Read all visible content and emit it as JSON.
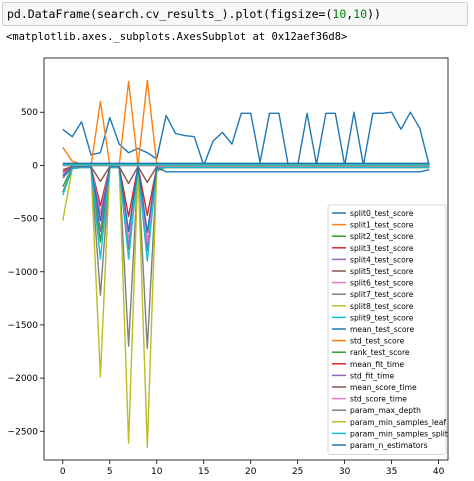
{
  "notebook": {
    "code_prefix": "pd.DataFrame(search.cv_results_).plot(figsize=(",
    "code_num1": "10",
    "code_comma": ",",
    "code_num2": "10",
    "code_suffix": "))",
    "output_text": "<matplotlib.axes._subplots.AxesSubplot at 0x12aef36d8>"
  },
  "chart_data": {
    "type": "line",
    "title": "",
    "xlabel": "",
    "ylabel": "",
    "xlim": [
      -2,
      41
    ],
    "ylim": [
      -2770,
      1010
    ],
    "xticks": [
      0,
      5,
      10,
      15,
      20,
      25,
      30,
      35,
      40
    ],
    "yticks": [
      -2500,
      -2000,
      -1500,
      -1000,
      -500,
      0,
      500
    ],
    "grid": false,
    "legend_position": "lower-right",
    "series": [
      {
        "name": "split0_test_score",
        "color": "#1f77b4",
        "values": [
          340,
          270,
          410,
          100,
          120,
          450,
          200,
          120,
          160,
          120,
          60,
          470,
          300,
          280,
          270,
          0,
          230,
          310,
          200,
          490,
          490,
          30,
          490,
          490,
          0,
          0,
          490,
          10,
          490,
          490,
          0,
          500,
          0,
          490,
          490,
          500,
          340,
          500,
          350,
          0
        ]
      },
      {
        "name": "split1_test_score",
        "color": "#ff7f0e",
        "values": [
          170,
          40,
          10,
          0,
          600,
          0,
          0,
          790,
          0,
          800,
          20,
          10,
          10,
          10,
          10,
          10,
          10,
          10,
          10,
          10,
          10,
          10,
          10,
          10,
          10,
          10,
          10,
          10,
          10,
          10,
          10,
          10,
          10,
          10,
          10,
          10,
          10,
          10,
          10,
          10
        ]
      },
      {
        "name": "split2_test_score",
        "color": "#2ca02c",
        "values": [
          -200,
          -20,
          -10,
          -10,
          -720,
          -10,
          -10,
          -790,
          -10,
          -800,
          -30,
          -10,
          -10,
          -10,
          -10,
          -10,
          -10,
          -10,
          -10,
          -10,
          -10,
          -10,
          -10,
          -10,
          -10,
          -10,
          -10,
          -10,
          -10,
          -10,
          -10,
          -10,
          -10,
          -10,
          -10,
          -10,
          -10,
          -10,
          -10,
          -10
        ]
      },
      {
        "name": "split3_test_score",
        "color": "#d62728",
        "values": [
          -60,
          -10,
          -10,
          -10,
          -380,
          -10,
          -10,
          -480,
          -10,
          -470,
          -20,
          -10,
          -10,
          -10,
          -10,
          -10,
          -10,
          -10,
          -10,
          -10,
          -10,
          -10,
          -10,
          -10,
          -10,
          -10,
          -10,
          -10,
          -10,
          -10,
          -10,
          -10,
          -10,
          -10,
          -10,
          -10,
          -10,
          -10,
          -10,
          -10
        ]
      },
      {
        "name": "split4_test_score",
        "color": "#9467bd",
        "values": [
          -120,
          -20,
          -10,
          -10,
          -620,
          -10,
          -10,
          -760,
          -10,
          -780,
          -20,
          -10,
          -10,
          -10,
          -10,
          -10,
          -10,
          -10,
          -10,
          -10,
          -10,
          -10,
          -10,
          -10,
          -10,
          -10,
          -10,
          -10,
          -10,
          -10,
          -10,
          -10,
          -10,
          -10,
          -10,
          -10,
          -10,
          -10,
          -10,
          -10
        ]
      },
      {
        "name": "split5_test_score",
        "color": "#8c564b",
        "values": [
          -40,
          -10,
          -10,
          -10,
          -150,
          -10,
          -10,
          -170,
          -10,
          -160,
          -10,
          -10,
          -10,
          -10,
          -10,
          -10,
          -10,
          -10,
          -10,
          -10,
          -10,
          -10,
          -10,
          -10,
          -10,
          -10,
          -10,
          -10,
          -10,
          -10,
          -10,
          -10,
          -10,
          -10,
          -10,
          -10,
          -10,
          -10,
          -10,
          -10
        ]
      },
      {
        "name": "split6_test_score",
        "color": "#e377c2",
        "values": [
          -80,
          -10,
          -10,
          -10,
          -450,
          -10,
          -10,
          -700,
          -10,
          -720,
          -20,
          -10,
          -10,
          -10,
          -10,
          -10,
          -10,
          -10,
          -10,
          -10,
          -10,
          -10,
          -10,
          -10,
          -10,
          -10,
          -10,
          -10,
          -10,
          -10,
          -10,
          -10,
          -10,
          -10,
          -10,
          -10,
          -10,
          -10,
          -10,
          -10
        ]
      },
      {
        "name": "split7_test_score",
        "color": "#7f7f7f",
        "values": [
          -250,
          -30,
          -20,
          -20,
          -1220,
          -20,
          -20,
          -1700,
          -20,
          -1720,
          -40,
          -20,
          -20,
          -20,
          -20,
          -20,
          -20,
          -20,
          -20,
          -20,
          -20,
          -20,
          -20,
          -20,
          -20,
          -20,
          -20,
          -20,
          -20,
          -20,
          -20,
          -20,
          -20,
          -20,
          -20,
          -20,
          -20,
          -20,
          -20,
          -20
        ]
      },
      {
        "name": "split8_test_score",
        "color": "#bcbd22",
        "values": [
          -520,
          -30,
          -20,
          -20,
          -1990,
          -20,
          -20,
          -2610,
          -20,
          -2650,
          -60,
          -20,
          -20,
          -20,
          -20,
          -20,
          -20,
          -20,
          -20,
          -20,
          -20,
          -20,
          -20,
          -20,
          -20,
          -20,
          -20,
          -20,
          -20,
          -20,
          -20,
          -20,
          -20,
          -20,
          -20,
          -20,
          -20,
          -20,
          -20,
          -20
        ]
      },
      {
        "name": "split9_test_score",
        "color": "#17becf",
        "values": [
          -280,
          -30,
          -20,
          -20,
          -880,
          -20,
          -20,
          -880,
          -20,
          -900,
          -30,
          -20,
          -20,
          -20,
          -20,
          -20,
          -20,
          -20,
          -20,
          -20,
          -20,
          -20,
          -20,
          -20,
          -20,
          -20,
          -20,
          -20,
          -20,
          -20,
          -20,
          -20,
          -20,
          -20,
          -20,
          -20,
          -20,
          -20,
          -20,
          -20
        ]
      },
      {
        "name": "mean_test_score",
        "color": "#1f77b4",
        "values": [
          -100,
          -10,
          -10,
          -10,
          -520,
          -10,
          -10,
          -620,
          -10,
          -630,
          -20,
          -60,
          -60,
          -60,
          -60,
          -60,
          -60,
          -60,
          -60,
          -60,
          -60,
          -60,
          -60,
          -60,
          -60,
          -60,
          -60,
          -60,
          -60,
          -60,
          -60,
          -60,
          -60,
          -60,
          -60,
          -60,
          -60,
          -60,
          -60,
          -40
        ]
      },
      {
        "name": "std_test_score",
        "color": "#ff7f0e",
        "values": [
          10,
          10,
          10,
          10,
          10,
          10,
          10,
          10,
          10,
          10,
          10,
          10,
          10,
          10,
          10,
          10,
          10,
          10,
          10,
          10,
          10,
          10,
          10,
          10,
          10,
          10,
          10,
          10,
          10,
          10,
          10,
          10,
          10,
          10,
          10,
          10,
          10,
          10,
          10,
          10
        ]
      },
      {
        "name": "rank_test_score",
        "color": "#2ca02c",
        "values": [
          15,
          15,
          15,
          15,
          15,
          15,
          15,
          15,
          15,
          15,
          15,
          15,
          15,
          15,
          15,
          15,
          15,
          15,
          15,
          15,
          15,
          15,
          15,
          15,
          15,
          15,
          15,
          15,
          15,
          15,
          15,
          15,
          15,
          15,
          15,
          15,
          15,
          15,
          15,
          15
        ]
      },
      {
        "name": "mean_fit_time",
        "color": "#d62728",
        "values": [
          0,
          0,
          0,
          0,
          0,
          0,
          0,
          0,
          0,
          0,
          0,
          0,
          0,
          0,
          0,
          0,
          0,
          0,
          0,
          0,
          0,
          0,
          0,
          0,
          0,
          0,
          0,
          0,
          0,
          0,
          0,
          0,
          0,
          0,
          0,
          0,
          0,
          0,
          0,
          0
        ]
      },
      {
        "name": "std_fit_time",
        "color": "#9467bd",
        "values": [
          0,
          0,
          0,
          0,
          0,
          0,
          0,
          0,
          0,
          0,
          0,
          0,
          0,
          0,
          0,
          0,
          0,
          0,
          0,
          0,
          0,
          0,
          0,
          0,
          0,
          0,
          0,
          0,
          0,
          0,
          0,
          0,
          0,
          0,
          0,
          0,
          0,
          0,
          0,
          0
        ]
      },
      {
        "name": "mean_score_time",
        "color": "#8c564b",
        "values": [
          0,
          0,
          0,
          0,
          0,
          0,
          0,
          0,
          0,
          0,
          0,
          0,
          0,
          0,
          0,
          0,
          0,
          0,
          0,
          0,
          0,
          0,
          0,
          0,
          0,
          0,
          0,
          0,
          0,
          0,
          0,
          0,
          0,
          0,
          0,
          0,
          0,
          0,
          0,
          0
        ]
      },
      {
        "name": "std_score_time",
        "color": "#e377c2",
        "values": [
          0,
          0,
          0,
          0,
          0,
          0,
          0,
          0,
          0,
          0,
          0,
          0,
          0,
          0,
          0,
          0,
          0,
          0,
          0,
          0,
          0,
          0,
          0,
          0,
          0,
          0,
          0,
          0,
          0,
          0,
          0,
          0,
          0,
          0,
          0,
          0,
          0,
          0,
          0,
          0
        ]
      },
      {
        "name": "param_max_depth",
        "color": "#7f7f7f",
        "values": [
          5,
          5,
          5,
          5,
          5,
          5,
          5,
          5,
          5,
          5,
          5,
          5,
          5,
          5,
          5,
          5,
          5,
          5,
          5,
          5,
          5,
          5,
          5,
          5,
          5,
          5,
          5,
          5,
          5,
          5,
          5,
          5,
          5,
          5,
          5,
          5,
          5,
          5,
          5,
          5
        ]
      },
      {
        "name": "param_min_samples_leaf",
        "color": "#bcbd22",
        "values": [
          3,
          3,
          3,
          3,
          3,
          3,
          3,
          3,
          3,
          3,
          3,
          3,
          3,
          3,
          3,
          3,
          3,
          3,
          3,
          3,
          3,
          3,
          3,
          3,
          3,
          3,
          3,
          3,
          3,
          3,
          3,
          3,
          3,
          3,
          3,
          3,
          3,
          3,
          3,
          3
        ]
      },
      {
        "name": "param_min_samples_split",
        "color": "#17becf",
        "values": [
          5,
          5,
          5,
          5,
          5,
          5,
          5,
          5,
          5,
          5,
          5,
          5,
          5,
          5,
          5,
          5,
          5,
          5,
          5,
          5,
          5,
          5,
          5,
          5,
          5,
          5,
          5,
          5,
          5,
          5,
          5,
          5,
          5,
          5,
          5,
          5,
          5,
          5,
          5,
          5
        ]
      },
      {
        "name": "param_n_estimators",
        "color": "#1f77b4",
        "values": [
          20,
          20,
          20,
          20,
          20,
          20,
          20,
          20,
          20,
          20,
          20,
          20,
          20,
          20,
          20,
          20,
          20,
          20,
          20,
          20,
          20,
          20,
          20,
          20,
          20,
          20,
          20,
          20,
          20,
          20,
          20,
          20,
          20,
          20,
          20,
          20,
          20,
          20,
          20,
          20
        ]
      }
    ]
  }
}
